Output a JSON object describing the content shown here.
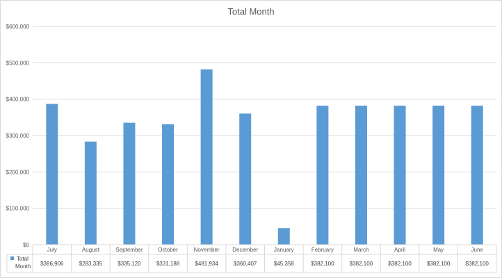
{
  "chart_data": {
    "type": "bar",
    "title": "Total Month",
    "categories": [
      "July",
      "August",
      "September",
      "October",
      "November",
      "December",
      "January",
      "February",
      "March",
      "April",
      "May",
      "June"
    ],
    "series": [
      {
        "name": "Total Month",
        "values": [
          386906,
          283335,
          335120,
          331188,
          481934,
          360407,
          45358,
          382100,
          382100,
          382100,
          382100,
          382100
        ],
        "labels": [
          "$386,906",
          "$283,335",
          "$335,120",
          "$331,188",
          "$481,934",
          "$360,407",
          "$45,358",
          "$382,100",
          "$382,100",
          "$382,100",
          "$382,100",
          "$382,100"
        ],
        "color": "#5b9bd5"
      }
    ],
    "ylim": [
      0,
      600000
    ],
    "yticks": [
      0,
      100000,
      200000,
      300000,
      400000,
      500000,
      600000
    ],
    "ytick_labels": [
      "$0",
      "$100,000",
      "$200,000",
      "$300,000",
      "$400,000",
      "$500,000",
      "$600,000"
    ],
    "grid": true,
    "legend": "data-table",
    "xlabel": "",
    "ylabel": ""
  }
}
